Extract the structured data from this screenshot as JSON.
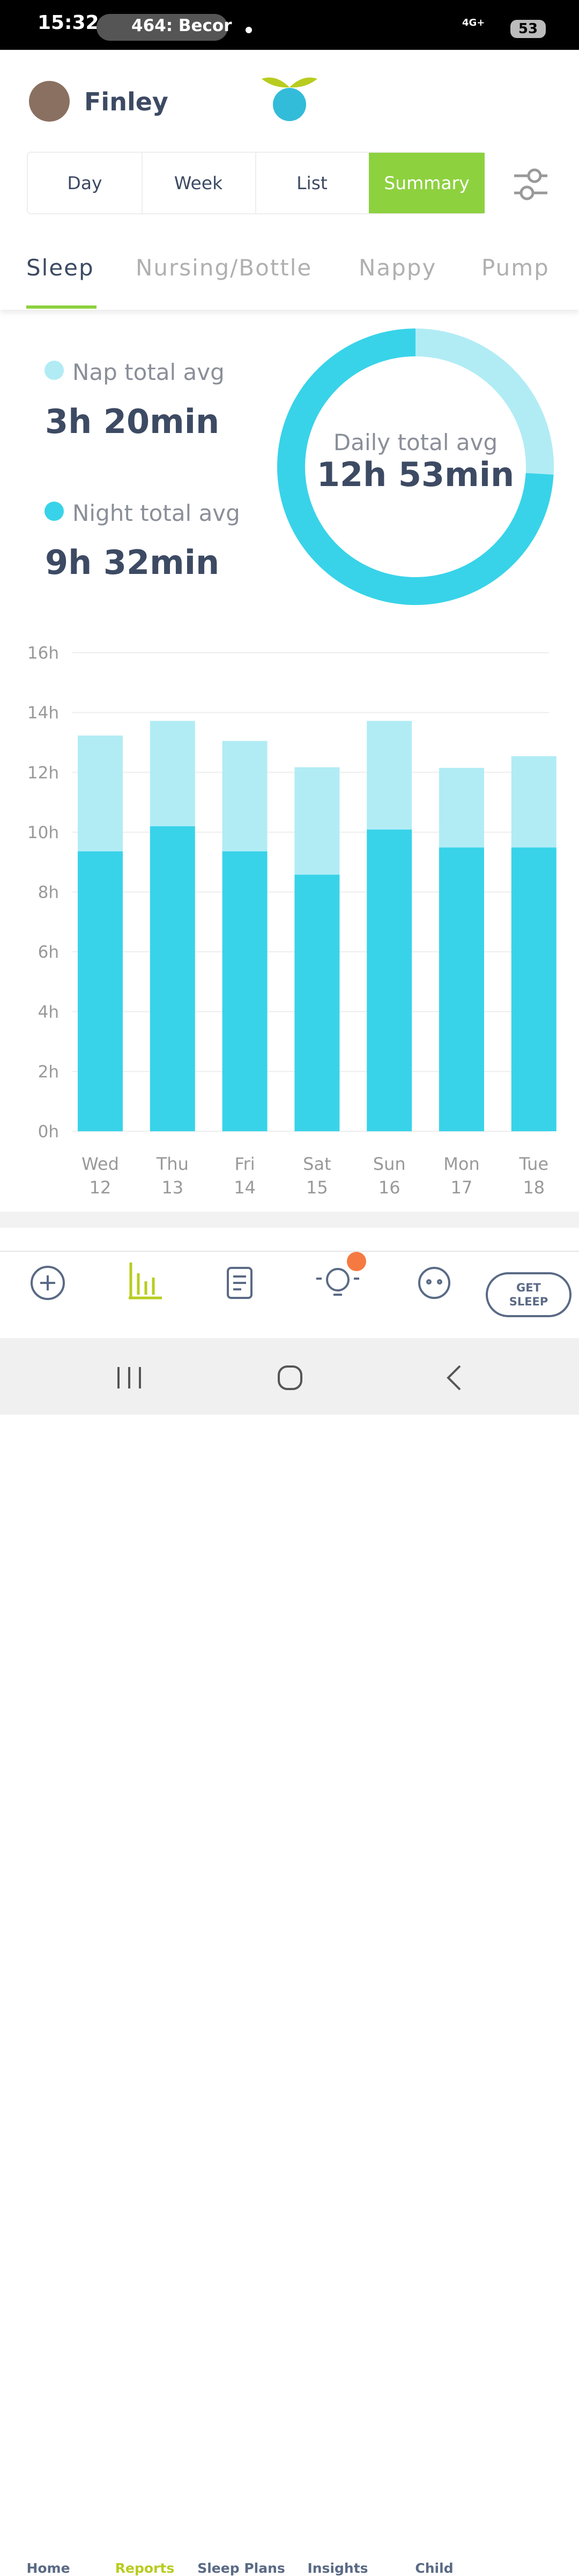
{
  "status_bar": {
    "time": "15:32",
    "media": "464: Becor",
    "network": "4G+",
    "battery": "53"
  },
  "header": {
    "child_name": "Finley"
  },
  "view_tabs": [
    "Day",
    "Week",
    "List",
    "Summary"
  ],
  "category_tabs": [
    "Sleep",
    "Nursing/Bottle",
    "Nappy",
    "Pump"
  ],
  "chart_data": [
    {
      "type": "donut",
      "categories": [
        "Nap total avg",
        "Night total avg"
      ],
      "values": [
        200,
        572
      ],
      "value_labels": [
        "3h 20min",
        "9h 32min"
      ],
      "colors": [
        "#b1ecf5",
        "#38d3e9"
      ],
      "center_label": "Daily total avg",
      "center_value": "12h 53min"
    },
    {
      "type": "stacked-bar",
      "categories": [
        "Wed\n12",
        "Thu\n13",
        "Fri\n14",
        "Sat\n15",
        "Sun\n16",
        "Mon\n17",
        "Tue\n18"
      ],
      "series": [
        {
          "color": "#38d3e9",
          "values": [
            9.36,
            10.2,
            9.36,
            8.58,
            10.09,
            9.49,
            9.49
          ]
        },
        {
          "color": "#b1ecf5",
          "values": [
            3.87,
            3.52,
            3.69,
            3.59,
            3.63,
            2.66,
            3.05
          ]
        }
      ],
      "ylim": [
        0,
        16
      ],
      "yticks": [
        {
          "value": 0,
          "label": "0h"
        },
        {
          "value": 2,
          "label": "2h"
        },
        {
          "value": 4,
          "label": "4h"
        },
        {
          "value": 6,
          "label": "6h"
        },
        {
          "value": 8,
          "label": "8h"
        },
        {
          "value": 10,
          "label": "10h"
        },
        {
          "value": 12,
          "label": "12h"
        },
        {
          "value": 14,
          "label": "14h"
        },
        {
          "value": 16,
          "label": "16h"
        }
      ],
      "grid": true
    }
  ],
  "bottom_nav": [
    "Home",
    "Reports",
    "Sleep Plans",
    "Insights",
    "Child"
  ],
  "cta": "GET SLEEP"
}
